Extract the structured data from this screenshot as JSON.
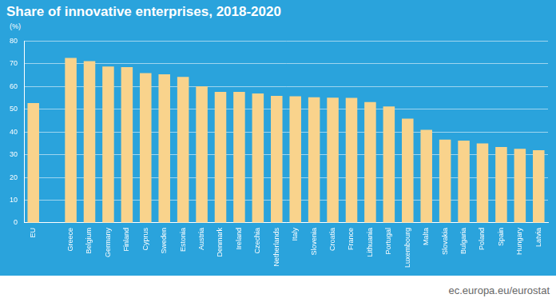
{
  "chart_data": {
    "type": "bar",
    "title": "Share of innovative enterprises, 2018-2020",
    "y_label": "(%)",
    "categories": [
      "EU",
      null,
      "Greece",
      "Belgium",
      "Germany",
      "Finland",
      "Cyprus",
      "Sweden",
      "Estonia",
      "Austria",
      "Denmark",
      "Ireland",
      "Czechia",
      "Netherlands",
      "Italy",
      "Slovenia",
      "Croatia",
      "France",
      "Lithuania",
      "Portugal",
      "Luxembourg",
      "Malta",
      "Slovakia",
      "Bulgaria",
      "Poland",
      "Spain",
      "Hungary",
      "Latvia"
    ],
    "values": [
      52.7,
      null,
      72.6,
      71.2,
      68.8,
      68.5,
      65.9,
      65.4,
      64.2,
      60.1,
      57.6,
      57.6,
      56.9,
      55.9,
      55.7,
      55.3,
      55.1,
      55.0,
      53.2,
      51.2,
      45.9,
      40.9,
      36.6,
      36.2,
      35.0,
      33.4,
      32.6,
      32.0
    ],
    "color": "#f9d38c",
    "ylim": [
      0,
      80
    ],
    "yticks": [
      0,
      10,
      20,
      30,
      40,
      50,
      60,
      70,
      80
    ],
    "grid": true,
    "source": "ec.europa.eu/eurostat"
  }
}
